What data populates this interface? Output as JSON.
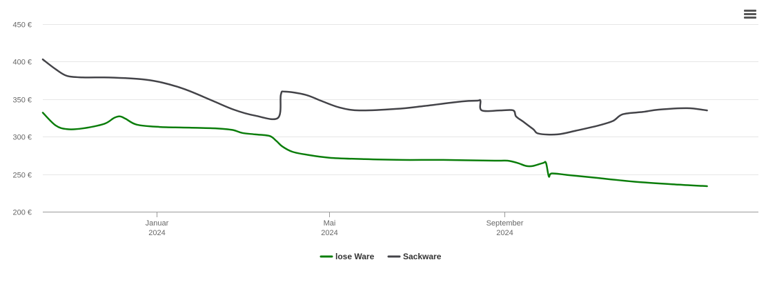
{
  "menu": {
    "icon": "hamburger-menu-icon"
  },
  "chart_data": {
    "type": "line",
    "title": "",
    "xlabel": "",
    "ylabel": "",
    "ylim": [
      200,
      450
    ],
    "yticks": [
      200,
      250,
      300,
      350,
      400,
      450
    ],
    "ytick_labels": [
      "200 €",
      "250 €",
      "300 €",
      "350 €",
      "400 €",
      "450 €"
    ],
    "xlim": [
      "2023-10-13",
      "2025-02-26"
    ],
    "xticks": [
      {
        "date": "2024-01-01",
        "label": "Januar",
        "sublabel": "2024"
      },
      {
        "date": "2024-05-01",
        "label": "Mai",
        "sublabel": "2024"
      },
      {
        "date": "2024-09-01",
        "label": "September",
        "sublabel": "2024"
      }
    ],
    "grid": true,
    "legend_position": "bottom-center",
    "series": [
      {
        "name": "lose Ware",
        "color": "#0a7d0a",
        "points": [
          [
            "2023-10-13",
            332
          ],
          [
            "2023-10-22",
            315
          ],
          [
            "2023-10-30",
            310
          ],
          [
            "2023-11-10",
            311
          ],
          [
            "2023-11-25",
            317
          ],
          [
            "2023-12-02",
            325
          ],
          [
            "2023-12-06",
            327
          ],
          [
            "2023-12-10",
            324
          ],
          [
            "2023-12-18",
            316
          ],
          [
            "2024-01-03",
            313
          ],
          [
            "2024-01-24",
            312
          ],
          [
            "2024-02-12",
            311
          ],
          [
            "2024-02-23",
            309
          ],
          [
            "2024-03-01",
            305
          ],
          [
            "2024-03-10",
            303
          ],
          [
            "2024-03-20",
            301
          ],
          [
            "2024-03-25",
            294
          ],
          [
            "2024-03-29",
            287
          ],
          [
            "2024-04-05",
            280
          ],
          [
            "2024-04-15",
            276
          ],
          [
            "2024-05-01",
            272
          ],
          [
            "2024-05-26",
            270
          ],
          [
            "2024-06-21",
            269
          ],
          [
            "2024-07-20",
            269
          ],
          [
            "2024-08-25",
            268
          ],
          [
            "2024-09-03",
            268
          ],
          [
            "2024-09-10",
            265
          ],
          [
            "2024-09-16",
            261
          ],
          [
            "2024-09-21",
            261
          ],
          [
            "2024-09-28",
            265
          ],
          [
            "2024-09-30",
            265
          ],
          [
            "2024-10-02",
            247
          ],
          [
            "2024-10-04",
            251
          ],
          [
            "2024-10-15",
            249
          ],
          [
            "2024-11-05",
            245
          ],
          [
            "2024-12-01",
            240
          ],
          [
            "2025-01-01",
            236
          ],
          [
            "2025-01-21",
            234
          ]
        ]
      },
      {
        "name": "Sackware",
        "color": "#434348",
        "points": [
          [
            "2023-10-13",
            403
          ],
          [
            "2023-10-22",
            390
          ],
          [
            "2023-10-30",
            381
          ],
          [
            "2023-11-10",
            379
          ],
          [
            "2023-11-25",
            379
          ],
          [
            "2023-12-10",
            378
          ],
          [
            "2023-12-24",
            376
          ],
          [
            "2024-01-05",
            372
          ],
          [
            "2024-01-21",
            363
          ],
          [
            "2024-02-09",
            348
          ],
          [
            "2024-02-24",
            336
          ],
          [
            "2024-03-10",
            328
          ],
          [
            "2024-03-26",
            325
          ],
          [
            "2024-03-28",
            356
          ],
          [
            "2024-03-31",
            360
          ],
          [
            "2024-04-14",
            356
          ],
          [
            "2024-04-25",
            348
          ],
          [
            "2024-05-08",
            339
          ],
          [
            "2024-05-22",
            335
          ],
          [
            "2024-06-17",
            337
          ],
          [
            "2024-07-07",
            341
          ],
          [
            "2024-08-02",
            347
          ],
          [
            "2024-08-13",
            348
          ],
          [
            "2024-08-15",
            348
          ],
          [
            "2024-08-16",
            335
          ],
          [
            "2024-08-29",
            335
          ],
          [
            "2024-09-07",
            335
          ],
          [
            "2024-09-09",
            327
          ],
          [
            "2024-09-14",
            320
          ],
          [
            "2024-09-21",
            310
          ],
          [
            "2024-09-25",
            304
          ],
          [
            "2024-10-08",
            303
          ],
          [
            "2024-10-21",
            308
          ],
          [
            "2024-11-06",
            315
          ],
          [
            "2024-11-16",
            321
          ],
          [
            "2024-11-23",
            330
          ],
          [
            "2024-12-07",
            333
          ],
          [
            "2024-12-18",
            336
          ],
          [
            "2025-01-07",
            338
          ],
          [
            "2025-01-21",
            335
          ]
        ]
      }
    ]
  }
}
